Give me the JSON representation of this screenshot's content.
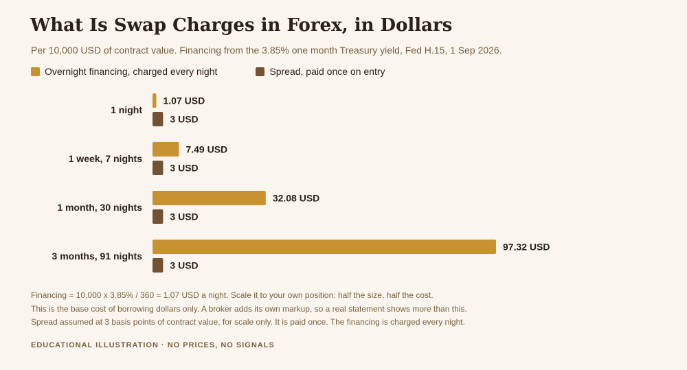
{
  "header": {
    "title": "What Is Swap Charges in Forex, in Dollars",
    "subtitle": "Per 10,000 USD of contract value. Financing from the 3.85% one month Treasury yield, Fed H.15, 1 Sep 2026."
  },
  "colors": {
    "financing": "#c7922f",
    "spread": "#735233"
  },
  "chart_data": {
    "type": "bar",
    "orientation": "horizontal",
    "categories": [
      "1 night",
      "1 week, 7 nights",
      "1 month, 30 nights",
      "3 months, 91 nights"
    ],
    "series": [
      {
        "name": "Overnight financing, charged every night",
        "values": [
          1.07,
          7.49,
          32.08,
          97.32
        ],
        "labels": [
          "1.07 USD",
          "7.49 USD",
          "32.08 USD",
          "97.32 USD"
        ]
      },
      {
        "name": "Spread, paid once on entry",
        "values": [
          3,
          3,
          3,
          3
        ],
        "labels": [
          "3 USD",
          "3 USD",
          "3 USD",
          "3 USD"
        ]
      }
    ],
    "title": "What Is Swap Charges in Forex, in Dollars",
    "xlabel": "",
    "ylabel": "",
    "xlim": [
      0,
      97.32
    ],
    "grid": false,
    "legend": "top-left"
  },
  "notes": [
    "Financing = 10,000 x 3.85% / 360 = 1.07 USD a night. Scale it to your own position: half the size, half the cost.",
    "This is the base cost of borrowing dollars only. A broker adds its own markup, so a real statement shows more than this.",
    "Spread assumed at 3 basis points of contract value, for scale only. It is paid once. The financing is charged every night."
  ],
  "footer": "EDUCATIONAL ILLUSTRATION · NO PRICES, NO SIGNALS"
}
